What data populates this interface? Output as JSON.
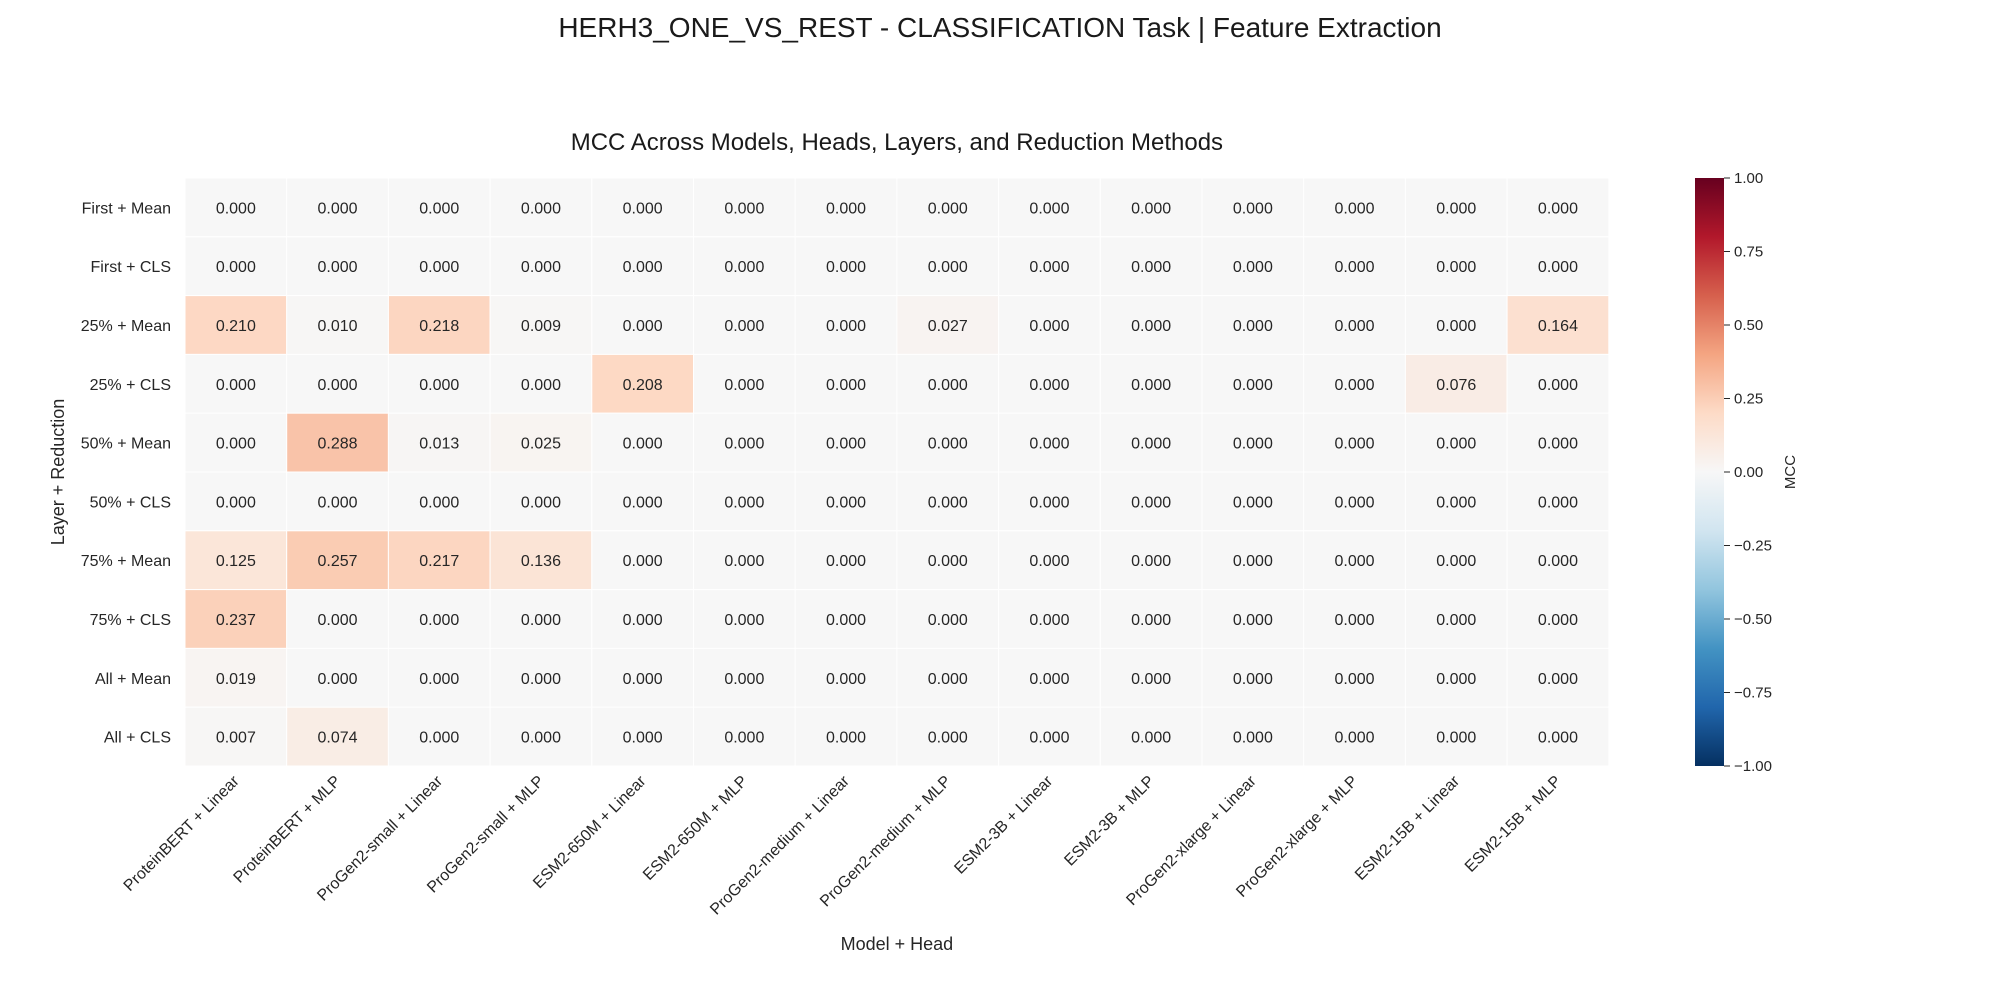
{
  "suptitle": "HERH3_ONE_VS_REST - CLASSIFICATION Task | Feature Extraction",
  "chart_data": {
    "type": "heatmap",
    "title": "MCC Across Models, Heads, Layers, and Reduction Methods",
    "xlabel": "Model + Head",
    "ylabel": "Layer + Reduction",
    "x_categories": [
      "ProteinBERT + Linear",
      "ProteinBERT + MLP",
      "ProGen2-small + Linear",
      "ProGen2-small + MLP",
      "ESM2-650M + Linear",
      "ESM2-650M + MLP",
      "ProGen2-medium + Linear",
      "ProGen2-medium + MLP",
      "ESM2-3B + Linear",
      "ESM2-3B + MLP",
      "ProGen2-xlarge + Linear",
      "ProGen2-xlarge + MLP",
      "ESM2-15B + Linear",
      "ESM2-15B + MLP"
    ],
    "y_categories": [
      "First + Mean",
      "First + CLS",
      "25% + Mean",
      "25% + CLS",
      "50% + Mean",
      "50% + CLS",
      "75% + Mean",
      "75% + CLS",
      "All + Mean",
      "All + CLS"
    ],
    "values": [
      [
        "0.000",
        "0.000",
        "0.000",
        "0.000",
        "0.000",
        "0.000",
        "0.000",
        "0.000",
        "0.000",
        "0.000",
        "0.000",
        "0.000",
        "0.000",
        "0.000"
      ],
      [
        "0.000",
        "0.000",
        "0.000",
        "0.000",
        "0.000",
        "0.000",
        "0.000",
        "0.000",
        "0.000",
        "0.000",
        "0.000",
        "0.000",
        "0.000",
        "0.000"
      ],
      [
        "0.210",
        "0.010",
        "0.218",
        "0.009",
        "0.000",
        "0.000",
        "0.000",
        "0.027",
        "0.000",
        "0.000",
        "0.000",
        "0.000",
        "0.000",
        "0.164"
      ],
      [
        "0.000",
        "0.000",
        "0.000",
        "0.000",
        "0.208",
        "0.000",
        "0.000",
        "0.000",
        "0.000",
        "0.000",
        "0.000",
        "0.000",
        "0.076",
        "0.000"
      ],
      [
        "0.000",
        "0.288",
        "0.013",
        "0.025",
        "0.000",
        "0.000",
        "0.000",
        "0.000",
        "0.000",
        "0.000",
        "0.000",
        "0.000",
        "0.000",
        "0.000"
      ],
      [
        "0.000",
        "0.000",
        "0.000",
        "0.000",
        "0.000",
        "0.000",
        "0.000",
        "0.000",
        "0.000",
        "0.000",
        "0.000",
        "0.000",
        "0.000",
        "0.000"
      ],
      [
        "0.125",
        "0.257",
        "0.217",
        "0.136",
        "0.000",
        "0.000",
        "0.000",
        "0.000",
        "0.000",
        "0.000",
        "0.000",
        "0.000",
        "0.000",
        "0.000"
      ],
      [
        "0.237",
        "0.000",
        "0.000",
        "0.000",
        "0.000",
        "0.000",
        "0.000",
        "0.000",
        "0.000",
        "0.000",
        "0.000",
        "0.000",
        "0.000",
        "0.000"
      ],
      [
        "0.019",
        "0.000",
        "0.000",
        "0.000",
        "0.000",
        "0.000",
        "0.000",
        "0.000",
        "0.000",
        "0.000",
        "0.000",
        "0.000",
        "0.000",
        "0.000"
      ],
      [
        "0.007",
        "0.074",
        "0.000",
        "0.000",
        "0.000",
        "0.000",
        "0.000",
        "0.000",
        "0.000",
        "0.000",
        "0.000",
        "0.000",
        "0.000",
        "0.000"
      ]
    ],
    "colorbar": {
      "label": "MCC",
      "range": [
        -1.0,
        1.0
      ],
      "ticks": [
        "1.00",
        "0.75",
        "0.50",
        "0.25",
        "0.00",
        "−0.25",
        "−0.50",
        "−0.75",
        "−1.00"
      ],
      "tick_values": [
        1.0,
        0.75,
        0.5,
        0.25,
        0.0,
        -0.25,
        -0.5,
        -0.75,
        -1.0
      ],
      "colormap": "RdBu_r",
      "colors": [
        "#053061",
        "#2166ac",
        "#4393c3",
        "#92c5de",
        "#d1e5f0",
        "#f7f7f7",
        "#fddbc7",
        "#f4a582",
        "#d6604d",
        "#b2182b",
        "#67001f"
      ]
    },
    "grid": false
  }
}
